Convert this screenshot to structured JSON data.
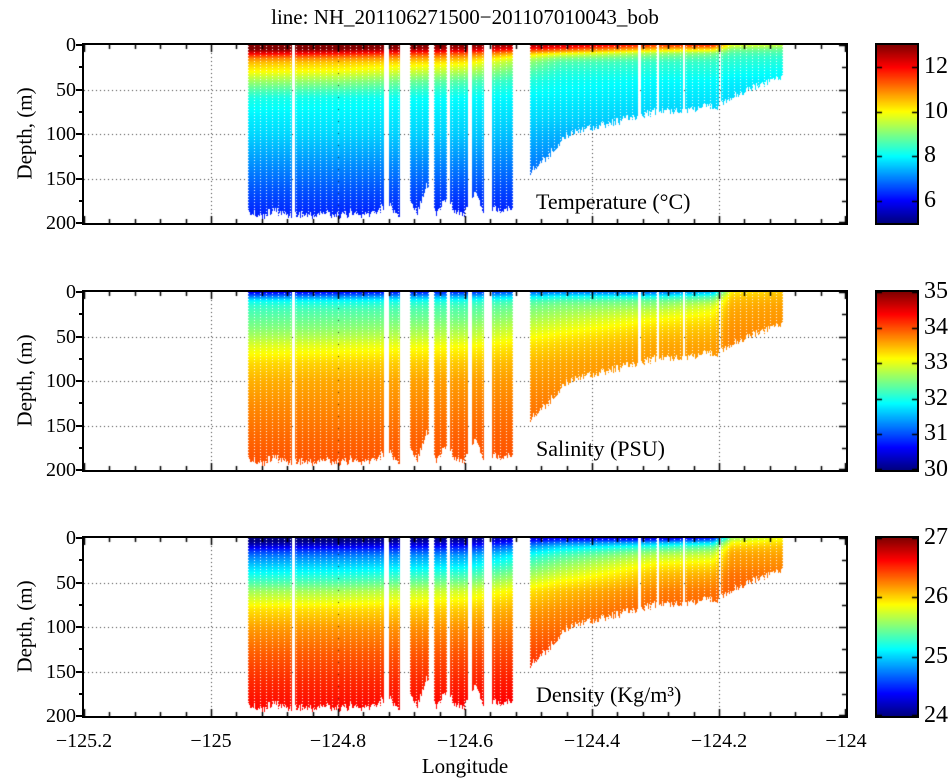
{
  "title": "line: NH_201106271500−201107010043_bob",
  "chart_data": {
    "type": "heatmap",
    "subtype": "ocean-vertical-section",
    "colormap": "jet",
    "xlabel": "Longitude",
    "ylabel": "Depth, (m)",
    "x_range": [
      -125.2,
      -124
    ],
    "x_ticks": [
      "−125.2",
      "−125",
      "−124.8",
      "−124.6",
      "−124.4",
      "−124.2",
      "−124"
    ],
    "x_tick_values": [
      -125.2,
      -125,
      -124.8,
      -124.6,
      -124.4,
      -124.2,
      -124
    ],
    "x_minor_step": 0.04,
    "depth_range": [
      0,
      200
    ],
    "depth_ticks": [
      0,
      50,
      100,
      150,
      200
    ],
    "depth_minor_step": 25,
    "grid": "dotted-major",
    "data_lon_extent": [
      -124.942,
      -124.1
    ],
    "gaps": [
      [
        -124.873,
        -124.868
      ],
      [
        -124.727,
        -124.72
      ],
      [
        -124.703,
        -124.686
      ],
      [
        -124.656,
        -124.649
      ],
      [
        -124.629,
        -124.623
      ],
      [
        -124.596,
        -124.589
      ],
      [
        -124.57,
        -124.557
      ],
      [
        -124.524,
        -124.497
      ],
      [
        -124.327,
        -124.323
      ],
      [
        -124.297,
        -124.294
      ],
      [
        -124.257,
        -124.254
      ],
      [
        -124.2,
        -124.197
      ]
    ],
    "bathymetry": {
      "lon": [
        -124.942,
        -124.92,
        -124.9,
        -124.88,
        -124.86,
        -124.84,
        -124.82,
        -124.8,
        -124.78,
        -124.76,
        -124.74,
        -124.72,
        -124.705,
        -124.69,
        -124.675,
        -124.66,
        -124.645,
        -124.63,
        -124.615,
        -124.6,
        -124.585,
        -124.57,
        -124.555,
        -124.54,
        -124.528,
        -124.5,
        -124.48,
        -124.46,
        -124.445,
        -124.43,
        -124.415,
        -124.4,
        -124.38,
        -124.36,
        -124.34,
        -124.32,
        -124.3,
        -124.28,
        -124.26,
        -124.24,
        -124.22,
        -124.2,
        -124.185,
        -124.17,
        -124.155,
        -124.14,
        -124.125,
        -124.11,
        -124.1
      ],
      "depth": [
        188,
        192,
        186,
        191,
        190,
        192,
        188,
        192,
        189,
        192,
        187,
        178,
        192,
        168,
        188,
        155,
        190,
        172,
        186,
        190,
        165,
        188,
        183,
        186,
        184,
        145,
        132,
        118,
        104,
        98,
        94,
        92,
        90,
        86,
        82,
        78,
        75,
        74,
        73,
        72,
        70,
        68,
        62,
        55,
        50,
        46,
        42,
        38,
        33
      ]
    },
    "profile_lons": [
      -124.95,
      -124.8,
      -124.6,
      -124.45,
      -124.3,
      -124.21,
      -124.18,
      -124.08
    ],
    "profile_depths": [
      0,
      5,
      10,
      15,
      20,
      30,
      40,
      50,
      60,
      80,
      100,
      130,
      160,
      195
    ],
    "panels": [
      {
        "name": "temperature",
        "annotation": "Temperature (°C)",
        "colorbar_min": 5,
        "colorbar_max": 13,
        "colorbar_ticks": [
          6,
          8,
          10,
          12
        ],
        "values": [
          [
            13.3,
            13.0,
            12.0,
            11.0,
            10.5,
            10.0,
            9.3,
            8.7,
            8.2,
            7.9,
            7.7,
            7.2,
            6.7,
            6.2
          ],
          [
            13.3,
            12.9,
            11.8,
            10.9,
            10.4,
            9.9,
            9.2,
            8.6,
            8.1,
            7.9,
            7.7,
            7.2,
            6.7,
            6.2
          ],
          [
            13.1,
            12.4,
            11.3,
            10.6,
            10.1,
            9.4,
            8.7,
            8.3,
            8.0,
            7.8,
            7.6,
            7.1,
            6.6,
            6.1
          ],
          [
            12.6,
            11.4,
            9.9,
            9.0,
            8.6,
            8.3,
            8.1,
            8.0,
            7.9,
            7.7,
            7.4,
            7.0,
            6.6,
            6.2
          ],
          [
            11.6,
            10.4,
            9.2,
            8.7,
            8.4,
            8.2,
            8.0,
            7.9,
            7.8,
            7.6,
            7.3,
            7.0,
            6.6,
            6.2
          ],
          [
            11.8,
            10.2,
            9.0,
            8.6,
            8.4,
            8.2,
            8.0,
            7.9,
            7.8,
            7.6,
            7.4,
            7.0,
            6.6,
            6.2
          ],
          [
            9.8,
            9.0,
            8.6,
            8.4,
            8.3,
            8.1,
            7.9,
            7.8,
            7.7,
            7.6,
            7.4,
            7.0,
            6.6,
            6.2
          ],
          [
            9.5,
            8.8,
            8.5,
            8.3,
            8.2,
            8.0,
            7.9,
            7.8,
            7.7,
            7.6,
            7.4,
            7.0,
            6.6,
            6.2
          ]
        ]
      },
      {
        "name": "salinity",
        "annotation": "Salinity (PSU)",
        "colorbar_min": 30,
        "colorbar_max": 35,
        "colorbar_ticks": [
          30,
          31,
          32,
          33,
          34,
          35
        ],
        "values": [
          [
            30.5,
            31.2,
            31.9,
            32.1,
            32.2,
            32.35,
            32.5,
            32.7,
            32.95,
            33.3,
            33.5,
            33.7,
            33.85,
            34.0
          ],
          [
            30.6,
            31.3,
            31.9,
            32.1,
            32.25,
            32.4,
            32.55,
            32.75,
            33.0,
            33.35,
            33.55,
            33.7,
            33.85,
            34.0
          ],
          [
            30.8,
            31.5,
            32.0,
            32.2,
            32.3,
            32.45,
            32.65,
            32.85,
            33.1,
            33.4,
            33.6,
            33.75,
            33.9,
            34.0
          ],
          [
            31.2,
            31.9,
            32.3,
            32.5,
            32.6,
            32.8,
            33.0,
            33.2,
            33.35,
            33.55,
            33.65,
            33.8,
            33.9,
            34.0
          ],
          [
            31.1,
            31.9,
            32.4,
            32.6,
            32.8,
            33.1,
            33.3,
            33.45,
            33.55,
            33.65,
            33.7,
            33.8,
            33.9,
            34.0
          ],
          [
            31.5,
            32.2,
            32.6,
            32.9,
            33.05,
            33.25,
            33.4,
            33.5,
            33.58,
            33.65,
            33.7,
            33.8,
            33.9,
            34.0
          ],
          [
            33.2,
            33.35,
            33.45,
            33.5,
            33.55,
            33.6,
            33.65,
            33.7,
            33.72,
            33.75,
            33.8,
            33.85,
            33.9,
            34.0
          ],
          [
            33.45,
            33.5,
            33.55,
            33.6,
            33.62,
            33.65,
            33.7,
            33.72,
            33.75,
            33.78,
            33.8,
            33.85,
            33.9,
            34.0
          ]
        ]
      },
      {
        "name": "density",
        "annotation": "Density (Kg/m³)",
        "colorbar_min": 24,
        "colorbar_max": 27,
        "colorbar_ticks": [
          24,
          25,
          26,
          27
        ],
        "values": [
          [
            23.9,
            24.05,
            24.3,
            24.55,
            24.72,
            24.95,
            25.15,
            25.35,
            25.6,
            25.95,
            26.15,
            26.35,
            26.5,
            26.62
          ],
          [
            23.9,
            24.1,
            24.35,
            24.58,
            24.75,
            24.98,
            25.18,
            25.38,
            25.62,
            25.97,
            26.17,
            26.36,
            26.5,
            26.62
          ],
          [
            24.0,
            24.2,
            24.45,
            24.65,
            24.85,
            25.05,
            25.28,
            25.5,
            25.75,
            26.02,
            26.2,
            26.38,
            26.52,
            26.65
          ],
          [
            24.3,
            24.7,
            25.0,
            25.2,
            25.35,
            25.55,
            25.72,
            25.9,
            26.05,
            26.2,
            26.3,
            26.45,
            26.58,
            26.68
          ],
          [
            24.2,
            24.85,
            25.25,
            25.5,
            25.68,
            25.9,
            26.05,
            26.15,
            26.25,
            26.35,
            26.4,
            26.45,
            26.55,
            26.65
          ],
          [
            24.4,
            25.0,
            25.4,
            25.6,
            25.75,
            25.95,
            26.1,
            26.2,
            26.28,
            26.35,
            26.4,
            26.45,
            26.55,
            26.65
          ],
          [
            25.6,
            25.85,
            26.0,
            26.1,
            26.15,
            26.2,
            26.28,
            26.32,
            26.35,
            26.4,
            26.45,
            26.5,
            26.55,
            26.65
          ],
          [
            25.9,
            26.0,
            26.08,
            26.12,
            26.16,
            26.22,
            26.28,
            26.32,
            26.35,
            26.4,
            26.45,
            26.5,
            26.55,
            26.65
          ]
        ]
      }
    ]
  }
}
